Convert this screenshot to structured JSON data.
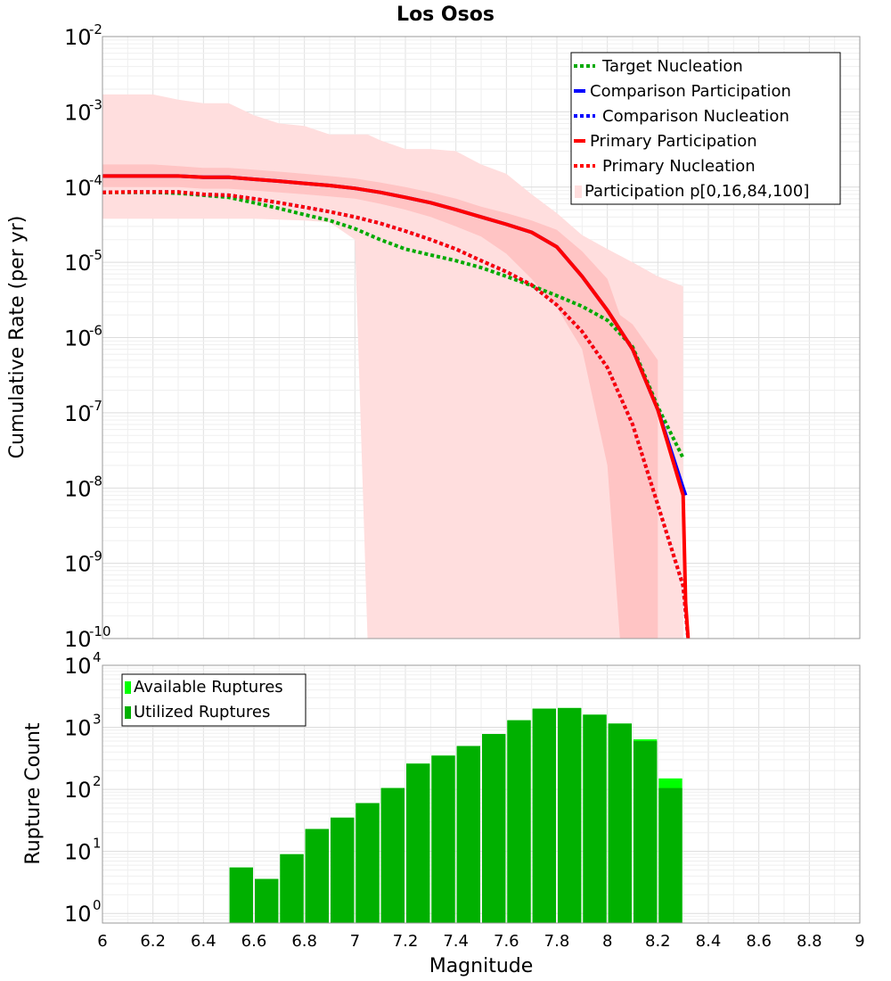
{
  "chart_data": [
    {
      "type": "line",
      "title": "Los Osos",
      "xlabel": "",
      "ylabel": "Cumulative Rate (per yr)",
      "xlim": [
        6,
        9
      ],
      "ylim": [
        1e-10,
        0.01
      ],
      "yscale": "log",
      "ytick_bases": [
        "10",
        "10",
        "10",
        "10",
        "10",
        "10",
        "10",
        "10",
        "10"
      ],
      "ytick_exponents": [
        "-10",
        "-9",
        "-8",
        "-7",
        "-6",
        "-5",
        "-4",
        "-3",
        "-2"
      ],
      "legend_position": "top-right",
      "colors": {
        "target": "#00aa00",
        "comparison": "#0000ff",
        "primary": "#ff0000",
        "band_outer": "#ffdede",
        "band_inner": "#ffc4c4"
      },
      "legend": [
        {
          "key": "target_nucleation",
          "label": "Target Nucleation"
        },
        {
          "key": "comparison_participation",
          "label": "Comparison Participation"
        },
        {
          "key": "comparison_nucleation",
          "label": "Comparison Nucleation"
        },
        {
          "key": "primary_participation",
          "label": "Primary Participation"
        },
        {
          "key": "primary_nucleation",
          "label": "Primary Nucleation"
        },
        {
          "key": "participation_band",
          "label": "Participation p[0,16,84,100]"
        }
      ],
      "series": [
        {
          "name": "Target Nucleation",
          "style": "dotted",
          "x": [
            6.0,
            6.1,
            6.2,
            6.3,
            6.4,
            6.5,
            6.6,
            6.7,
            6.8,
            6.9,
            7.0,
            7.1,
            7.2,
            7.3,
            7.4,
            7.5,
            7.6,
            7.7,
            7.8,
            7.9,
            8.0,
            8.1,
            8.2,
            8.3
          ],
          "y": [
            8.5e-05,
            8.5e-05,
            8.5e-05,
            8.3e-05,
            7.8e-05,
            7.3e-05,
            6.2e-05,
            5.2e-05,
            4.3e-05,
            3.6e-05,
            2.8e-05,
            2e-05,
            1.5e-05,
            1.25e-05,
            1.05e-05,
            8.5e-06,
            6.5e-06,
            4.9e-06,
            3.6e-06,
            2.6e-06,
            1.7e-06,
            7.5e-07,
            1.2e-07,
            2.5e-08
          ]
        },
        {
          "name": "Comparison Participation",
          "style": "solid",
          "x": [
            6.0,
            6.1,
            6.2,
            6.3,
            6.4,
            6.5,
            6.6,
            6.7,
            6.8,
            6.9,
            7.0,
            7.1,
            7.2,
            7.3,
            7.4,
            7.5,
            7.6,
            7.7,
            7.8,
            7.9,
            8.0,
            8.1,
            8.2,
            8.3,
            8.31
          ],
          "y": [
            0.00014,
            0.00014,
            0.00014,
            0.00014,
            0.000135,
            0.000135,
            0.000127,
            0.00012,
            0.000112,
            0.000105,
            9.6e-05,
            8.5e-05,
            7.3e-05,
            6.2e-05,
            5e-05,
            4e-05,
            3.2e-05,
            2.5e-05,
            1.6e-05,
            6.5e-06,
            2.3e-06,
            7e-07,
            1.1e-07,
            1e-08,
            8e-09
          ]
        },
        {
          "name": "Comparison Nucleation",
          "style": "dotted",
          "x": [
            6.0,
            6.1,
            6.2,
            6.3,
            6.4,
            6.5,
            6.6,
            6.7,
            6.8,
            6.9,
            7.0,
            7.1,
            7.2,
            7.3,
            7.4,
            7.5,
            7.6,
            7.7,
            7.8,
            7.9,
            8.0,
            8.1,
            8.2,
            8.3,
            8.32
          ],
          "y": [
            8.5e-05,
            8.6e-05,
            8.6e-05,
            8.6e-05,
            8e-05,
            7.8e-05,
            7e-05,
            6.2e-05,
            5.4e-05,
            4.7e-05,
            4e-05,
            3.3e-05,
            2.6e-05,
            2e-05,
            1.5e-05,
            1.05e-05,
            7.5e-06,
            5e-06,
            2.7e-06,
            1.2e-06,
            4e-07,
            7e-08,
            6e-09,
            5e-10,
            1e-10
          ]
        },
        {
          "name": "Primary Participation",
          "style": "solid",
          "x": [
            6.0,
            6.1,
            6.2,
            6.3,
            6.4,
            6.5,
            6.6,
            6.7,
            6.8,
            6.9,
            7.0,
            7.1,
            7.2,
            7.3,
            7.4,
            7.5,
            7.6,
            7.7,
            7.8,
            7.9,
            8.0,
            8.1,
            8.2,
            8.3,
            8.31,
            8.32
          ],
          "y": [
            0.00014,
            0.00014,
            0.00014,
            0.00014,
            0.000135,
            0.000135,
            0.000127,
            0.00012,
            0.000112,
            0.000105,
            9.6e-05,
            8.5e-05,
            7.3e-05,
            6.2e-05,
            5e-05,
            4e-05,
            3.2e-05,
            2.5e-05,
            1.6e-05,
            6.5e-06,
            2.3e-06,
            7e-07,
            1.1e-07,
            8e-09,
            3e-10,
            1e-10
          ]
        },
        {
          "name": "Primary Nucleation",
          "style": "dotted",
          "x": [
            6.0,
            6.1,
            6.2,
            6.3,
            6.4,
            6.5,
            6.6,
            6.7,
            6.8,
            6.9,
            7.0,
            7.1,
            7.2,
            7.3,
            7.4,
            7.5,
            7.6,
            7.7,
            7.8,
            7.9,
            8.0,
            8.1,
            8.2,
            8.3,
            8.32
          ],
          "y": [
            8.5e-05,
            8.6e-05,
            8.6e-05,
            8.6e-05,
            8e-05,
            7.8e-05,
            7e-05,
            6.2e-05,
            5.4e-05,
            4.7e-05,
            4e-05,
            3.3e-05,
            2.6e-05,
            2e-05,
            1.5e-05,
            1.05e-05,
            7.5e-06,
            5e-06,
            2.7e-06,
            1.2e-06,
            4e-07,
            7e-08,
            6e-09,
            5e-10,
            1e-10
          ]
        }
      ],
      "band_outer": {
        "name": "Participation p0-p100",
        "x": [
          6.0,
          6.1,
          6.2,
          6.3,
          6.4,
          6.5,
          6.6,
          6.7,
          6.8,
          6.9,
          7.0,
          7.05,
          7.1,
          7.2,
          7.3,
          7.4,
          7.5,
          7.6,
          7.7,
          7.8,
          7.9,
          8.0,
          8.1,
          8.2,
          8.3
        ],
        "upper": [
          0.0017,
          0.0017,
          0.0017,
          0.00145,
          0.0013,
          0.0013,
          0.0009,
          0.0007,
          0.00065,
          0.0005,
          0.0005,
          0.0005,
          0.00042,
          0.00032,
          0.00032,
          0.0003,
          0.0002,
          0.00015,
          8e-05,
          4.5e-05,
          2.3e-05,
          1.5e-05,
          1e-05,
          6.5e-06,
          4.8e-06
        ],
        "lower": [
          3.8e-05,
          3.8e-05,
          3.8e-05,
          3.8e-05,
          3.8e-05,
          3.8e-05,
          3.8e-05,
          3.7e-05,
          3.6e-05,
          3.4e-05,
          2e-05,
          1e-10,
          1e-10,
          1e-10,
          1e-10,
          1e-10,
          1e-10,
          1e-10,
          1e-10,
          1e-10,
          1e-10,
          1e-10,
          1e-10,
          1e-10,
          1e-10
        ]
      },
      "band_inner": {
        "name": "Participation p16-p84",
        "x": [
          6.0,
          6.1,
          6.2,
          6.3,
          6.4,
          6.5,
          6.6,
          6.7,
          6.8,
          6.9,
          7.0,
          7.1,
          7.2,
          7.3,
          7.4,
          7.5,
          7.6,
          7.7,
          7.8,
          7.9,
          8.0,
          8.05,
          8.1,
          8.2
        ],
        "upper": [
          0.0002,
          0.0002,
          0.0002,
          0.00019,
          0.00018,
          0.00018,
          0.00017,
          0.00016,
          0.00015,
          0.00014,
          0.00013,
          0.000115,
          0.0001,
          8.5e-05,
          7e-05,
          5.5e-05,
          4.5e-05,
          3.6e-05,
          2.7e-05,
          1.4e-05,
          6e-06,
          2e-06,
          1.5e-06,
          5e-07
        ],
        "lower": [
          0.0001,
          0.0001,
          0.0001,
          0.0001,
          9.5e-05,
          9.5e-05,
          9e-05,
          8.5e-05,
          8e-05,
          7.5e-05,
          7e-05,
          6e-05,
          5e-05,
          4e-05,
          3e-05,
          2.2e-05,
          1.3e-05,
          6e-06,
          2.5e-06,
          7e-07,
          2e-08,
          1e-10,
          1e-10,
          1e-10
        ]
      }
    },
    {
      "type": "bar",
      "title": "",
      "xlabel": "Magnitude",
      "ylabel": "Rupture Count",
      "xlim": [
        6,
        9
      ],
      "ylim": [
        0.7,
        10000
      ],
      "yscale": "log",
      "xticks": [
        "6",
        "6.2",
        "6.4",
        "6.6",
        "6.8",
        "7",
        "7.2",
        "7.4",
        "7.6",
        "7.8",
        "8",
        "8.2",
        "8.4",
        "8.6",
        "8.8",
        "9"
      ],
      "ytick_bases": [
        "10",
        "10",
        "10",
        "10",
        "10"
      ],
      "ytick_exponents": [
        "0",
        "1",
        "2",
        "3",
        "4"
      ],
      "bin_width": 0.1,
      "legend_position": "top-left",
      "colors": {
        "available": "#00ff00",
        "utilized": "#00b000"
      },
      "legend": [
        {
          "key": "available",
          "label": "Available Ruptures"
        },
        {
          "key": "utilized",
          "label": "Utilized Ruptures"
        }
      ],
      "bin_centers": [
        6.55,
        6.65,
        6.75,
        6.85,
        6.95,
        7.05,
        7.15,
        7.25,
        7.35,
        7.45,
        7.55,
        7.65,
        7.75,
        7.85,
        7.95,
        8.05,
        8.15,
        8.25
      ],
      "series": [
        {
          "name": "Available Ruptures",
          "values": [
            5.5,
            3.6,
            9,
            23,
            35,
            60,
            105,
            260,
            350,
            500,
            780,
            1300,
            2000,
            2050,
            1600,
            1150,
            640,
            150
          ]
        },
        {
          "name": "Utilized Ruptures",
          "values": [
            5.5,
            3.6,
            9,
            23,
            35,
            60,
            105,
            260,
            350,
            500,
            780,
            1300,
            2000,
            2050,
            1600,
            1150,
            600,
            105
          ]
        }
      ]
    }
  ]
}
